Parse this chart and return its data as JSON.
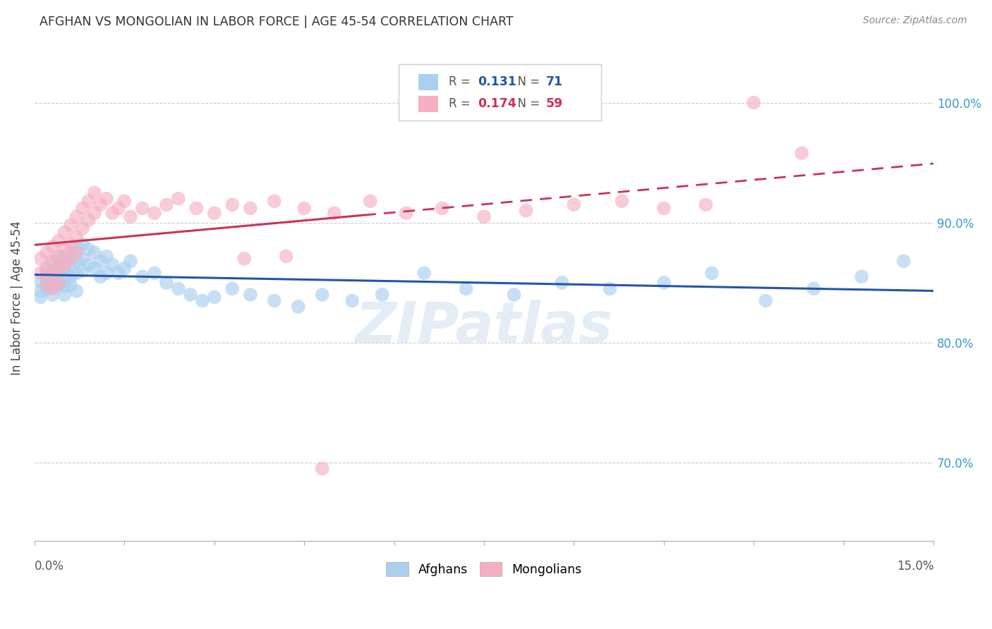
{
  "title": "AFGHAN VS MONGOLIAN IN LABOR FORCE | AGE 45-54 CORRELATION CHART",
  "source": "Source: ZipAtlas.com",
  "ylabel": "In Labor Force | Age 45-54",
  "ytick_labels": [
    "70.0%",
    "80.0%",
    "90.0%",
    "100.0%"
  ],
  "ytick_values": [
    0.7,
    0.8,
    0.9,
    1.0
  ],
  "xlim": [
    0.0,
    0.15
  ],
  "ylim": [
    0.635,
    1.04
  ],
  "afghan_color": "#aacfef",
  "mongolian_color": "#f5afc0",
  "afghan_line_color": "#2255aa",
  "mongolian_line_color": "#cc3355",
  "legend_afghan_R": "0.131",
  "legend_afghan_N": "71",
  "legend_mongolian_R": "0.174",
  "legend_mongolian_N": "59",
  "grid_color": "#cccccc",
  "background_color": "#ffffff",
  "title_color": "#333333",
  "axis_label_color": "#444444",
  "right_axis_color": "#3399cc",
  "watermark": "ZIPatlas",
  "afghan_x": [
    0.001,
    0.001,
    0.001,
    0.002,
    0.002,
    0.002,
    0.002,
    0.002,
    0.003,
    0.003,
    0.003,
    0.003,
    0.003,
    0.004,
    0.004,
    0.004,
    0.004,
    0.004,
    0.005,
    0.005,
    0.005,
    0.005,
    0.005,
    0.006,
    0.006,
    0.006,
    0.006,
    0.007,
    0.007,
    0.007,
    0.007,
    0.008,
    0.008,
    0.008,
    0.009,
    0.009,
    0.01,
    0.01,
    0.011,
    0.011,
    0.012,
    0.012,
    0.013,
    0.014,
    0.015,
    0.016,
    0.018,
    0.02,
    0.022,
    0.024,
    0.026,
    0.028,
    0.03,
    0.033,
    0.036,
    0.04,
    0.044,
    0.048,
    0.053,
    0.058,
    0.065,
    0.072,
    0.08,
    0.088,
    0.096,
    0.105,
    0.113,
    0.122,
    0.13,
    0.138,
    0.145
  ],
  "afghan_y": [
    0.843,
    0.851,
    0.838,
    0.853,
    0.847,
    0.856,
    0.862,
    0.845,
    0.858,
    0.85,
    0.848,
    0.865,
    0.84,
    0.862,
    0.856,
    0.848,
    0.87,
    0.858,
    0.872,
    0.862,
    0.855,
    0.847,
    0.84,
    0.875,
    0.865,
    0.855,
    0.848,
    0.88,
    0.868,
    0.858,
    0.843,
    0.882,
    0.87,
    0.86,
    0.878,
    0.865,
    0.875,
    0.862,
    0.868,
    0.855,
    0.872,
    0.858,
    0.865,
    0.858,
    0.862,
    0.868,
    0.855,
    0.858,
    0.85,
    0.845,
    0.84,
    0.835,
    0.838,
    0.845,
    0.84,
    0.835,
    0.83,
    0.84,
    0.835,
    0.84,
    0.858,
    0.845,
    0.84,
    0.85,
    0.845,
    0.85,
    0.858,
    0.835,
    0.845,
    0.855,
    0.868
  ],
  "mongolian_x": [
    0.001,
    0.001,
    0.002,
    0.002,
    0.002,
    0.003,
    0.003,
    0.003,
    0.003,
    0.004,
    0.004,
    0.004,
    0.004,
    0.005,
    0.005,
    0.005,
    0.006,
    0.006,
    0.006,
    0.007,
    0.007,
    0.007,
    0.008,
    0.008,
    0.009,
    0.009,
    0.01,
    0.01,
    0.011,
    0.012,
    0.013,
    0.014,
    0.015,
    0.016,
    0.018,
    0.02,
    0.022,
    0.024,
    0.027,
    0.03,
    0.033,
    0.036,
    0.04,
    0.045,
    0.05,
    0.056,
    0.062,
    0.068,
    0.075,
    0.082,
    0.09,
    0.098,
    0.105,
    0.112,
    0.12,
    0.128,
    0.035,
    0.042,
    0.048
  ],
  "mongolian_y": [
    0.858,
    0.87,
    0.875,
    0.86,
    0.848,
    0.88,
    0.868,
    0.858,
    0.845,
    0.885,
    0.872,
    0.862,
    0.85,
    0.892,
    0.878,
    0.865,
    0.898,
    0.882,
    0.87,
    0.905,
    0.888,
    0.875,
    0.912,
    0.895,
    0.918,
    0.902,
    0.925,
    0.908,
    0.915,
    0.92,
    0.908,
    0.912,
    0.918,
    0.905,
    0.912,
    0.908,
    0.915,
    0.92,
    0.912,
    0.908,
    0.915,
    0.912,
    0.918,
    0.912,
    0.908,
    0.918,
    0.908,
    0.912,
    0.905,
    0.91,
    0.915,
    0.918,
    0.912,
    0.915,
    1.0,
    0.958,
    0.87,
    0.872,
    0.695
  ]
}
